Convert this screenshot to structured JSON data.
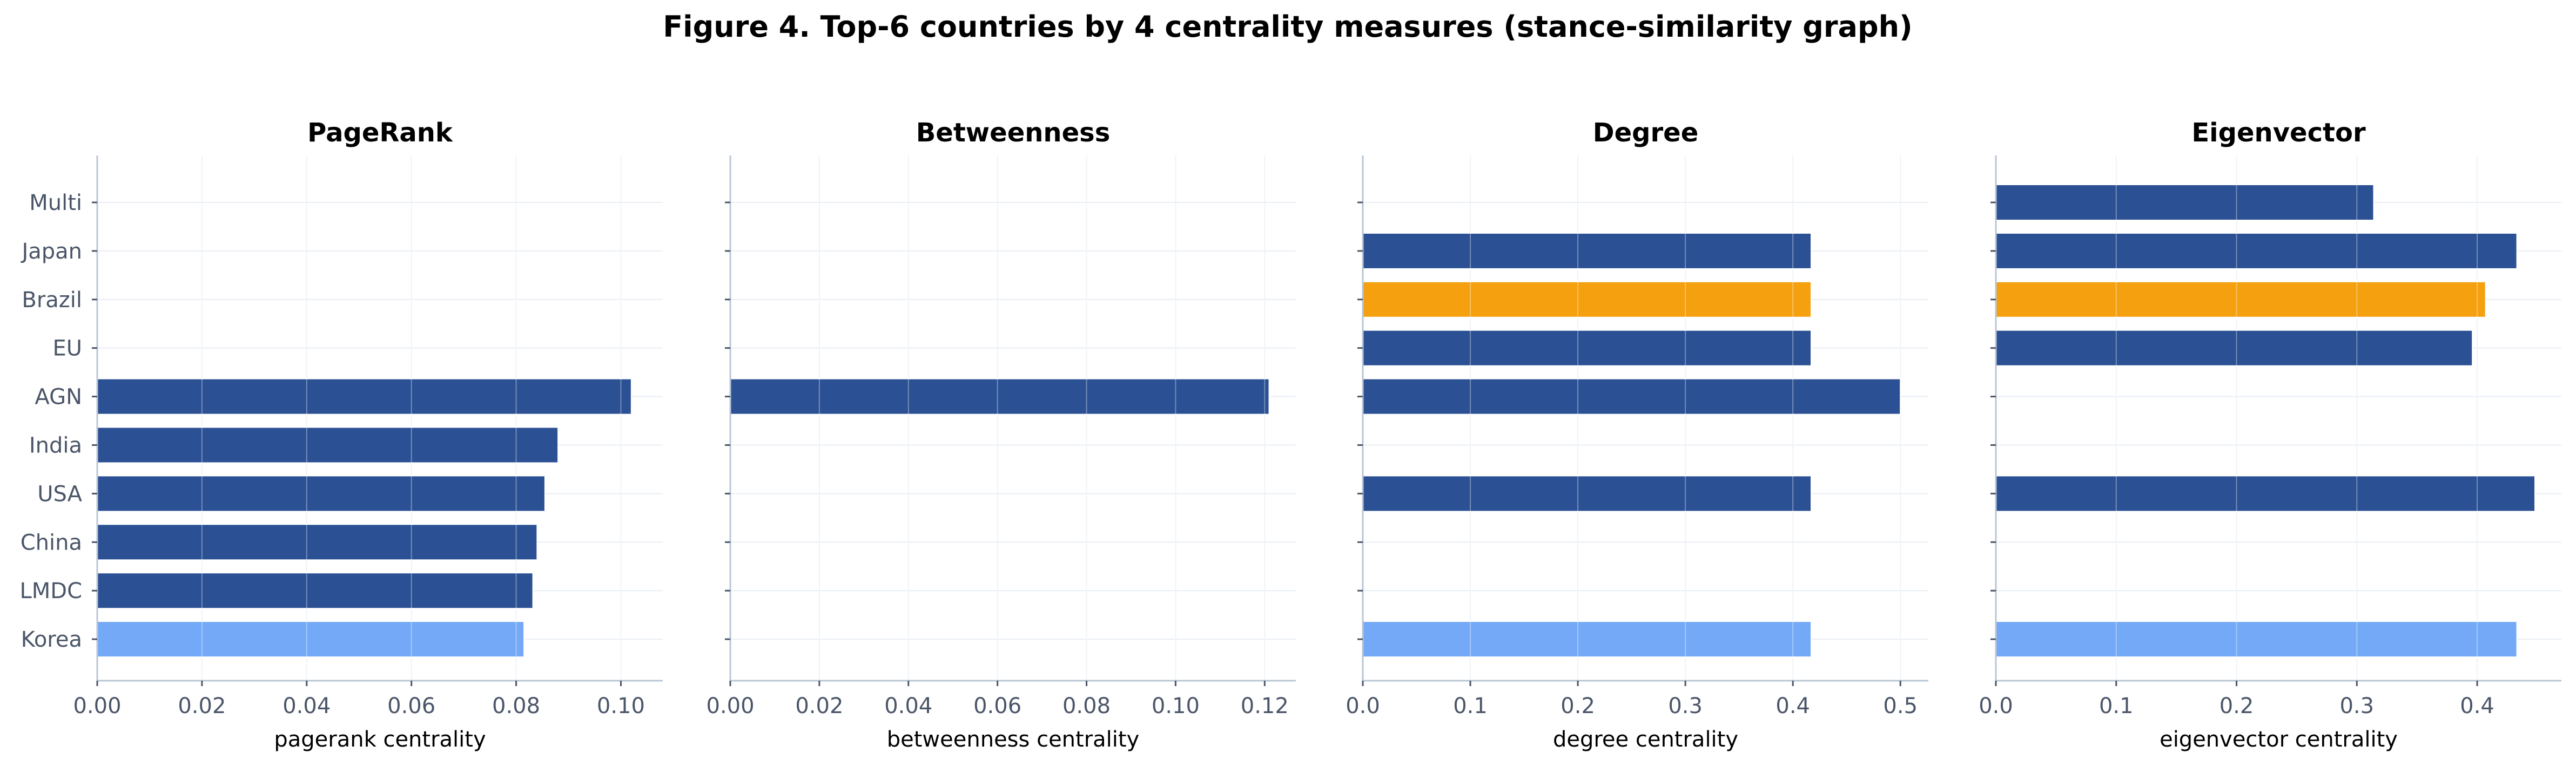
{
  "figure_title": "Figure 4. Top-6 countries by 4 centrality measures (stance-similarity graph)",
  "colors": {
    "bar_default": "#2b5093",
    "bar_brazil": "#f5a00f",
    "bar_korea": "#73a9f7",
    "grid": "#e9eef4",
    "axis": "#b9c6d6"
  },
  "chart_data": [
    {
      "type": "bar",
      "orientation": "horizontal",
      "title": "PageRank",
      "xlabel": "pagerank centrality",
      "categories": [
        "Multi",
        "Japan",
        "Brazil",
        "EU",
        "AGN",
        "India",
        "USA",
        "China",
        "LMDC",
        "Korea"
      ],
      "values": [
        null,
        null,
        null,
        null,
        0.102,
        0.088,
        0.0855,
        0.084,
        0.0832,
        0.0815
      ],
      "xlim": [
        0,
        0.108
      ],
      "xticks": [
        "0.00",
        "0.02",
        "0.04",
        "0.06",
        "0.08",
        "0.10"
      ],
      "grid": true
    },
    {
      "type": "bar",
      "orientation": "horizontal",
      "title": "Betweenness",
      "xlabel": "betweenness centrality",
      "categories": [
        "Multi",
        "Japan",
        "Brazil",
        "EU",
        "AGN",
        "India",
        "USA",
        "China",
        "LMDC",
        "Korea"
      ],
      "values": [
        null,
        null,
        null,
        null,
        0.121,
        null,
        null,
        null,
        null,
        null
      ],
      "xlim": [
        0,
        0.127
      ],
      "xticks": [
        "0.00",
        "0.02",
        "0.04",
        "0.06",
        "0.08",
        "0.10",
        "0.12"
      ],
      "grid": true
    },
    {
      "type": "bar",
      "orientation": "horizontal",
      "title": "Degree",
      "xlabel": "degree centrality",
      "categories": [
        "Multi",
        "Japan",
        "Brazil",
        "EU",
        "AGN",
        "India",
        "USA",
        "China",
        "LMDC",
        "Korea"
      ],
      "values": [
        null,
        0.417,
        0.417,
        0.417,
        0.5,
        null,
        0.417,
        null,
        null,
        0.417
      ],
      "xlim": [
        0,
        0.526
      ],
      "xticks": [
        "0.0",
        "0.1",
        "0.2",
        "0.3",
        "0.4",
        "0.5"
      ],
      "grid": true
    },
    {
      "type": "bar",
      "orientation": "horizontal",
      "title": "Eigenvector",
      "xlabel": "eigenvector centrality",
      "categories": [
        "Multi",
        "Japan",
        "Brazil",
        "EU",
        "AGN",
        "India",
        "USA",
        "China",
        "LMDC",
        "Korea"
      ],
      "values": [
        0.314,
        0.433,
        0.407,
        0.396,
        null,
        null,
        0.448,
        null,
        null,
        0.433
      ],
      "xlim": [
        0,
        0.47
      ],
      "xticks": [
        "0.0",
        "0.1",
        "0.2",
        "0.3",
        "0.4"
      ],
      "grid": true
    }
  ]
}
